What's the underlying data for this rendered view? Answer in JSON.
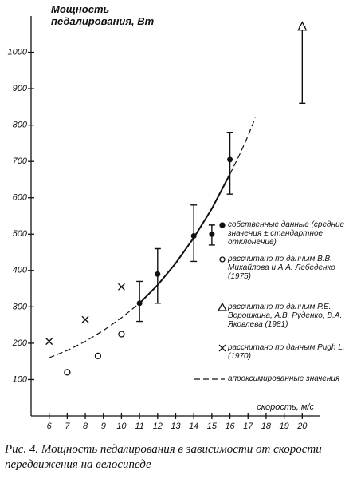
{
  "chart_data": {
    "type": "scatter",
    "y_label": "Мощность педалирования, Вт",
    "x_label": "скорость, м/с",
    "caption": "Рис. 4. Мощность педалирования в зависимости от скорости передвижения на велосипеде",
    "xlim": [
      5,
      21
    ],
    "ylim": [
      0,
      1100
    ],
    "xticks": [
      6,
      7,
      8,
      9,
      10,
      11,
      12,
      13,
      14,
      15,
      16,
      17,
      18,
      19,
      20
    ],
    "yticks": [
      100,
      200,
      300,
      400,
      500,
      600,
      700,
      800,
      900,
      1000
    ],
    "series": [
      {
        "name": "собственные данные (средние значения ± стандартное отклонение)",
        "marker": "dot",
        "x": [
          11,
          12,
          14,
          15,
          16
        ],
        "values": [
          310,
          390,
          495,
          500,
          705
        ],
        "lo": [
          260,
          310,
          425,
          470,
          610
        ],
        "hi": [
          370,
          460,
          580,
          525,
          780
        ]
      },
      {
        "name": "рассчитано по данным В.В. Михайлова и А.А. Лебеденко (1975)",
        "marker": "circle",
        "x": [
          7,
          8.7,
          10
        ],
        "values": [
          120,
          165,
          225
        ]
      },
      {
        "name": "рассчитано по данным Р.Е. Ворошкина, А.В. Руденко, В.А. Яковлева (1981)",
        "marker": "triangle",
        "x": [
          20
        ],
        "values": [
          1070
        ],
        "lo": [
          860
        ],
        "hi": [
          1070
        ]
      },
      {
        "name": "рассчитано по данным Pugh L. (1970)",
        "marker": "cross",
        "x": [
          6,
          8,
          10
        ],
        "values": [
          205,
          265,
          355
        ]
      }
    ],
    "curve": {
      "name": "апроксимированные значения",
      "segments": [
        {
          "dashed": true,
          "x": [
            6,
            7,
            8,
            9,
            10,
            11
          ],
          "values": [
            160,
            180,
            205,
            235,
            270,
            310
          ]
        },
        {
          "dashed": false,
          "x": [
            11,
            12,
            13,
            14,
            15,
            16
          ],
          "values": [
            310,
            360,
            420,
            490,
            570,
            665
          ]
        },
        {
          "dashed": true,
          "x": [
            16,
            16.5,
            17,
            17.4
          ],
          "values": [
            665,
            715,
            770,
            820
          ]
        }
      ]
    }
  }
}
